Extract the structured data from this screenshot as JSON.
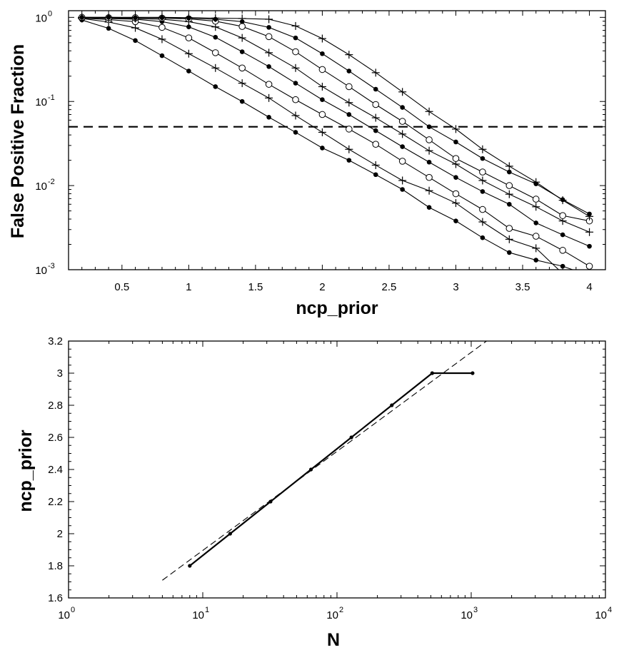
{
  "chart_data": [
    {
      "type": "line",
      "xlabel": "ncp_prior",
      "ylabel": "False Positive Fraction",
      "yscale": "log",
      "xlim": [
        0.1,
        4.12
      ],
      "ylim": [
        0.001,
        1.2
      ],
      "x_ticks": [
        0.5,
        1,
        1.5,
        2,
        2.5,
        3,
        3.5,
        4
      ],
      "x_tick_labels": [
        "0.5",
        "1",
        "1.5",
        "2",
        "2.5",
        "3",
        "3.5",
        "4"
      ],
      "y_ticks": [
        {
          "value": 1,
          "base": "10",
          "exp": "0"
        },
        {
          "value": 0.1,
          "base": "10",
          "exp": "-1"
        },
        {
          "value": 0.01,
          "base": "10",
          "exp": "-2"
        },
        {
          "value": 0.001,
          "base": "10",
          "exp": "-3"
        }
      ],
      "x": [
        0.2,
        0.4,
        0.6,
        0.8,
        1.0,
        1.2,
        1.4,
        1.6,
        1.8,
        2.0,
        2.2,
        2.4,
        2.6,
        2.8,
        3.0,
        3.2,
        3.4,
        3.6,
        3.8,
        4.0
      ],
      "series": [
        {
          "marker": "dot",
          "values": [
            0.93,
            0.74,
            0.53,
            0.35,
            0.23,
            0.15,
            0.1,
            0.065,
            0.043,
            0.028,
            0.02,
            0.0135,
            0.009,
            0.0055,
            0.0038,
            0.0024,
            0.0016,
            0.0013,
            0.0011,
            0.00085
          ]
        },
        {
          "marker": "plus",
          "values": [
            0.97,
            0.88,
            0.75,
            0.55,
            0.37,
            0.25,
            0.165,
            0.11,
            0.068,
            0.043,
            0.027,
            0.0175,
            0.0115,
            0.0087,
            0.0062,
            0.0037,
            0.0023,
            0.0018,
            0.0009,
            0.0006
          ]
        },
        {
          "marker": "circle",
          "values": [
            0.98,
            0.94,
            0.89,
            0.76,
            0.57,
            0.38,
            0.25,
            0.16,
            0.105,
            0.07,
            0.047,
            0.031,
            0.0195,
            0.0125,
            0.008,
            0.0052,
            0.0031,
            0.0025,
            0.0017,
            0.0011
          ]
        },
        {
          "marker": "dot",
          "values": [
            0.99,
            0.97,
            0.95,
            0.89,
            0.77,
            0.58,
            0.39,
            0.26,
            0.165,
            0.105,
            0.07,
            0.045,
            0.029,
            0.019,
            0.0125,
            0.0085,
            0.006,
            0.0036,
            0.0026,
            0.0019
          ]
        },
        {
          "marker": "plus",
          "values": [
            0.99,
            0.98,
            0.97,
            0.95,
            0.89,
            0.77,
            0.57,
            0.38,
            0.25,
            0.15,
            0.097,
            0.064,
            0.041,
            0.026,
            0.018,
            0.0115,
            0.0079,
            0.0056,
            0.0038,
            0.0028
          ]
        },
        {
          "marker": "circle",
          "values": [
            1.0,
            0.99,
            0.99,
            0.98,
            0.96,
            0.9,
            0.78,
            0.59,
            0.39,
            0.24,
            0.15,
            0.092,
            0.058,
            0.035,
            0.021,
            0.0145,
            0.01,
            0.0069,
            0.0044,
            0.0038
          ]
        },
        {
          "marker": "dot",
          "values": [
            1.0,
            1.0,
            0.99,
            0.99,
            0.98,
            0.95,
            0.89,
            0.76,
            0.57,
            0.37,
            0.23,
            0.14,
            0.085,
            0.05,
            0.033,
            0.021,
            0.0145,
            0.0105,
            0.0068,
            0.0046
          ]
        },
        {
          "marker": "plus",
          "values": [
            1.0,
            1.0,
            1.0,
            1.0,
            0.99,
            0.98,
            0.97,
            0.95,
            0.79,
            0.56,
            0.36,
            0.22,
            0.13,
            0.076,
            0.047,
            0.027,
            0.017,
            0.011,
            0.0067,
            0.0043
          ]
        }
      ],
      "reference_line": {
        "y": 0.05,
        "style": "dashed"
      }
    },
    {
      "type": "line",
      "xlabel": "N",
      "ylabel": "ncp_prior",
      "xscale": "log",
      "xlim": [
        1,
        10000
      ],
      "ylim": [
        1.6,
        3.2
      ],
      "x_ticks": [
        {
          "value": 1,
          "base": "10",
          "exp": "0"
        },
        {
          "value": 10,
          "base": "10",
          "exp": "1"
        },
        {
          "value": 100,
          "base": "10",
          "exp": "2"
        },
        {
          "value": 1000,
          "base": "10",
          "exp": "3"
        },
        {
          "value": 10000,
          "base": "10",
          "exp": "4"
        }
      ],
      "y_ticks": [
        1.6,
        1.8,
        2,
        2.2,
        2.4,
        2.6,
        2.8,
        3,
        3.2
      ],
      "y_tick_labels": [
        "1.6",
        "1.8",
        "2",
        "2.2",
        "2.4",
        "2.6",
        "2.8",
        "3",
        "3.2"
      ],
      "series": [
        {
          "style": "solid",
          "marker": "dot",
          "x": [
            8,
            16,
            32,
            64,
            128,
            256,
            512,
            1024
          ],
          "values": [
            1.8,
            2.0,
            2.2,
            2.4,
            2.6,
            2.8,
            3.0,
            3.0
          ]
        }
      ],
      "fit_line": {
        "style": "dashed",
        "x": [
          5,
          1300
        ],
        "values": [
          1.71,
          3.2
        ]
      }
    }
  ]
}
